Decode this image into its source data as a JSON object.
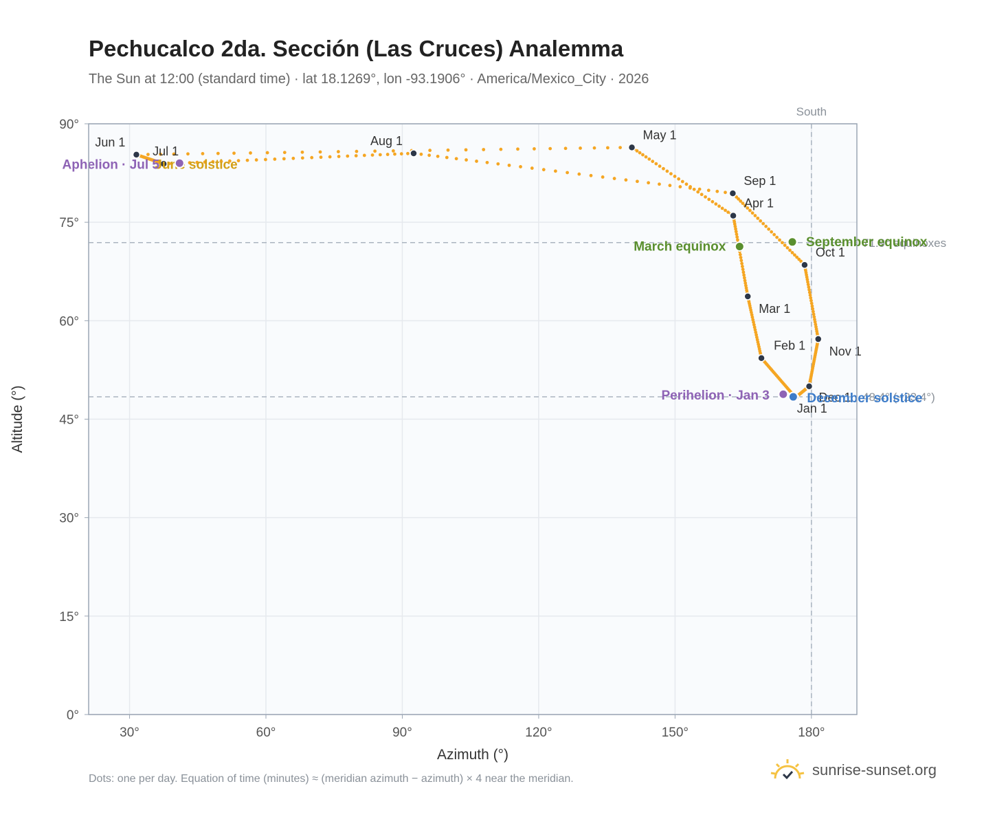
{
  "title": "Pechucalco 2da. Sección (Las Cruces) Analemma",
  "subtitle": "The Sun at 12:00 (standard time) · lat 18.1269°, lon -93.1906° · America/Mexico_City · 2026",
  "footer_note": "Dots: one per day. Equation of time (minutes) ≈ (meridian azimuth − azimuth) × 4 near the meridian.",
  "brand": "sunrise-sunset.org",
  "colors": {
    "dots": "#f5a623",
    "month_marker": "#2d3748",
    "equinox": "#5a8f2e",
    "solstice_dec": "#3d7cc9",
    "solstice_jun": "#d4a017",
    "apsis": "#8e63b5",
    "ref_line": "#aab4c0",
    "grid": "#e6e9ee",
    "plot_bg": "#f9fbfd"
  },
  "chart_data": {
    "type": "scatter",
    "xlabel": "Azimuth (°)",
    "ylabel": "Altitude (°)",
    "xlim": [
      21,
      190
    ],
    "ylim": [
      0,
      90
    ],
    "x_ticks": [
      30,
      60,
      90,
      120,
      150,
      180
    ],
    "x_tick_labels": [
      "30°",
      "60°",
      "90°",
      "120°",
      "150°",
      "180°"
    ],
    "y_ticks": [
      0,
      15,
      30,
      45,
      60,
      75,
      90
    ],
    "y_tick_labels": [
      "0°",
      "15°",
      "30°",
      "45°",
      "60°",
      "75°",
      "90°"
    ],
    "grid": true,
    "month_markers": [
      {
        "label": "Jan 1",
        "az": 176.5,
        "alt": 48.3
      },
      {
        "label": "Feb 1",
        "az": 169.0,
        "alt": 54.3
      },
      {
        "label": "Mar 1",
        "az": 166.0,
        "alt": 63.7
      },
      {
        "label": "Apr 1",
        "az": 162.8,
        "alt": 76.0
      },
      {
        "label": "May 1",
        "az": 140.5,
        "alt": 86.4
      },
      {
        "label": "Jun 1",
        "az": 31.5,
        "alt": 85.3
      },
      {
        "label": "Jul 1",
        "az": 37.5,
        "alt": 83.9
      },
      {
        "label": "Aug 1",
        "az": 92.5,
        "alt": 85.5
      },
      {
        "label": "Sep 1",
        "az": 162.7,
        "alt": 79.4
      },
      {
        "label": "Oct 1",
        "az": 178.5,
        "alt": 68.5
      },
      {
        "label": "Nov 1",
        "az": 181.5,
        "alt": 57.2
      },
      {
        "label": "Dec 1",
        "az": 179.5,
        "alt": 50.0
      }
    ],
    "special_points": [
      {
        "label": "March equinox",
        "az": 164.2,
        "alt": 71.3,
        "kind": "equinox"
      },
      {
        "label": "September equinox",
        "az": 175.8,
        "alt": 72.0,
        "kind": "equinox"
      },
      {
        "label": "December solstice",
        "az": 176.0,
        "alt": 48.4,
        "kind": "solstice_dec"
      },
      {
        "label": "June solstice",
        "az": 41.0,
        "alt": 84.0,
        "kind": "solstice_jun"
      },
      {
        "label": "Perihelion · Jan 3",
        "az": 173.8,
        "alt": 48.8,
        "kind": "apsis"
      },
      {
        "label": "Aphelion · Jul 5",
        "az": 41.0,
        "alt": 84.0,
        "kind": "apsis"
      }
    ],
    "reference_lines": [
      {
        "orientation": "vertical",
        "value": 180,
        "label": "South"
      },
      {
        "orientation": "horizontal",
        "value": 71.9,
        "label": "71.9° equinoxes"
      },
      {
        "orientation": "horizontal",
        "value": 48.4,
        "label": "48.4° (−23.4°)"
      }
    ]
  }
}
